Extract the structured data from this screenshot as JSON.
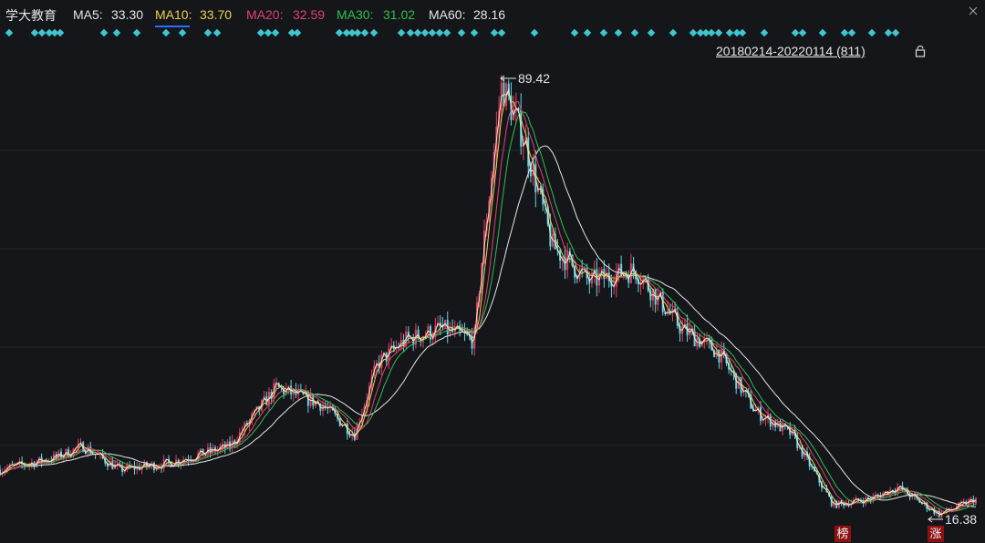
{
  "header": {
    "stock_name": "学大教育",
    "ma5_label": "MA5:",
    "ma5_value": "33.30",
    "ma10_label": "MA10:",
    "ma10_value": "33.70",
    "ma20_label": "MA20:",
    "ma20_value": "32.59",
    "ma30_label": "MA30:",
    "ma30_value": "31.02",
    "ma60_label": "MA60:",
    "ma60_value": "28.16"
  },
  "range_label": "20180214-20220114 (811)",
  "annotations": {
    "high_label": "89.42",
    "low_label": "16.38",
    "tag_bang": "榜",
    "tag_zhang": "涨"
  },
  "colors": {
    "background": "#15161a",
    "ma5": "#e6e6e6",
    "ma10": "#e8d44d",
    "ma20": "#e0407a",
    "ma30": "#2fbf50",
    "ma60": "#e6e6e6",
    "candle_up": "#e83e5a",
    "candle_down": "#5fd7e8",
    "marker": "#3ec7d0",
    "grid": "#24262c"
  },
  "chart_data": {
    "type": "line",
    "stock": "学大教育",
    "period": "20180214-20220114",
    "count": 811,
    "ylim": [
      14,
      93
    ],
    "high": 89.42,
    "low": 16.38,
    "key_prices": [
      {
        "t": 0,
        "price": 24
      },
      {
        "t": 60,
        "price": 26
      },
      {
        "t": 90,
        "price": 28
      },
      {
        "t": 130,
        "price": 24
      },
      {
        "t": 180,
        "price": 25
      },
      {
        "t": 250,
        "price": 28
      },
      {
        "t": 300,
        "price": 38
      },
      {
        "t": 350,
        "price": 35
      },
      {
        "t": 385,
        "price": 30
      },
      {
        "t": 410,
        "price": 42
      },
      {
        "t": 440,
        "price": 46
      },
      {
        "t": 480,
        "price": 48
      },
      {
        "t": 515,
        "price": 46
      },
      {
        "t": 525,
        "price": 62
      },
      {
        "t": 545,
        "price": 89.42
      },
      {
        "t": 570,
        "price": 80
      },
      {
        "t": 600,
        "price": 62
      },
      {
        "t": 640,
        "price": 56
      },
      {
        "t": 690,
        "price": 58
      },
      {
        "t": 740,
        "price": 48
      },
      {
        "t": 780,
        "price": 44
      },
      {
        "t": 820,
        "price": 34
      },
      {
        "t": 860,
        "price": 30
      },
      {
        "t": 905,
        "price": 18
      },
      {
        "t": 945,
        "price": 19
      },
      {
        "t": 975,
        "price": 21
      },
      {
        "t": 1020,
        "price": 16.38
      },
      {
        "t": 1060,
        "price": 19
      }
    ]
  }
}
